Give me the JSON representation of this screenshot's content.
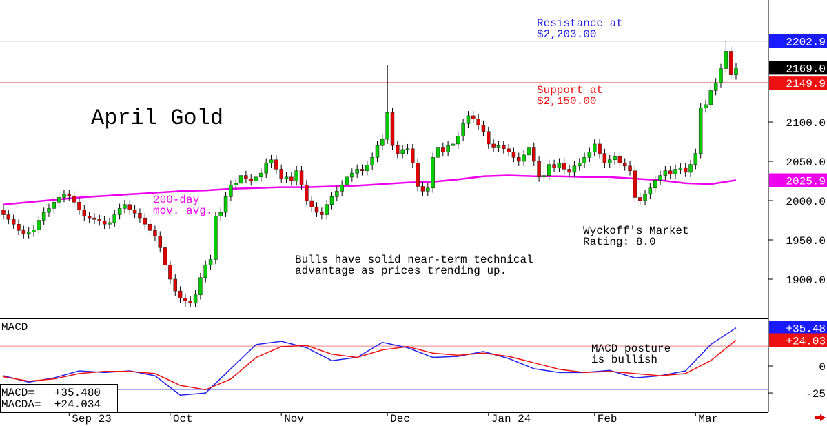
{
  "chart_data": [
    {
      "type": "candlestick",
      "title": "April Gold",
      "categories": [
        null,
        null,
        null,
        null,
        null,
        null,
        null,
        null,
        null,
        null,
        null,
        null,
        null,
        "Sep 23",
        null,
        null,
        null,
        null,
        null,
        null,
        null,
        null,
        null,
        null,
        null,
        null,
        null,
        null,
        null,
        null,
        null,
        null,
        null,
        "Oct",
        null,
        null,
        null,
        null,
        null,
        null,
        null,
        null,
        null,
        null,
        null,
        null,
        null,
        null,
        null,
        null,
        null,
        null,
        null,
        null,
        null,
        "Nov",
        null,
        null,
        null,
        null,
        null,
        null,
        null,
        null,
        null,
        null,
        null,
        null,
        null,
        null,
        null,
        null,
        null,
        null,
        null,
        null,
        "Dec",
        null,
        null,
        null,
        null,
        null,
        null,
        null,
        null,
        null,
        null,
        null,
        null,
        null,
        null,
        null,
        null,
        null,
        null,
        null,
        "Jan 24",
        null,
        null,
        null,
        null,
        null,
        null,
        null,
        null,
        null,
        null,
        null,
        null,
        null,
        null,
        null,
        null,
        null,
        null,
        null,
        null,
        "Feb",
        null,
        null,
        null,
        null,
        null,
        null,
        null,
        null,
        null,
        null,
        null,
        null,
        null,
        null,
        null,
        null,
        null,
        null,
        null,
        "Mar",
        null,
        null,
        null,
        null,
        null,
        null,
        null,
        null
      ],
      "open": [
        1988,
        1982,
        1976,
        1970,
        1962,
        1958,
        1960,
        1963,
        1975,
        1985,
        1990,
        1998,
        2004,
        2008,
        2006,
        1998,
        1988,
        1980,
        1978,
        1976,
        1974,
        1970,
        1972,
        1982,
        1990,
        1995,
        1988,
        1984,
        1978,
        1970,
        1962,
        1955,
        1940,
        1918,
        1900,
        1885,
        1876,
        1872,
        1870,
        1880,
        1902,
        1918,
        1925,
        1980,
        1985,
        2005,
        2020,
        2022,
        2032,
        2028,
        2025,
        2030,
        2035,
        2048,
        2052,
        2040,
        2028,
        2030,
        2025,
        2038,
        2020,
        2000,
        1992,
        1985,
        1982,
        1995,
        2005,
        2012,
        2020,
        2030,
        2035,
        2040,
        2038,
        2045,
        2055,
        2070,
        2078,
        2112,
        2070,
        2060,
        2065,
        2066,
        2048,
        2018,
        2012,
        2016,
        2055,
        2068,
        2062,
        2070,
        2072,
        2082,
        2098,
        2108,
        2104,
        2096,
        2088,
        2072,
        2068,
        2070,
        2066,
        2062,
        2055,
        2050,
        2058,
        2068,
        2050,
        2030,
        2032,
        2046,
        2042,
        2048,
        2040,
        2036,
        2044,
        2048,
        2055,
        2062,
        2072,
        2060,
        2048,
        2052,
        2056,
        2048,
        2044,
        2038,
        2004,
        2000,
        2008,
        2016,
        2026,
        2032,
        2038,
        2034,
        2040,
        2042,
        2036,
        2046,
        2060,
        2118,
        2122,
        2140,
        2150,
        2168,
        2190,
        2160
      ],
      "high": [
        1994,
        1988,
        1982,
        1976,
        1968,
        1966,
        1969,
        1981,
        1991,
        1996,
        2004,
        2010,
        2014,
        2014,
        2012,
        2004,
        1994,
        1986,
        1984,
        1982,
        1980,
        1978,
        1988,
        1996,
        2001,
        2001,
        1994,
        1990,
        1984,
        1976,
        1968,
        1961,
        1946,
        1924,
        1906,
        1891,
        1882,
        1878,
        1886,
        1908,
        1924,
        1931,
        1986,
        1991,
        2011,
        2026,
        2028,
        2038,
        2038,
        2034,
        2036,
        2041,
        2054,
        2058,
        2058,
        2046,
        2036,
        2036,
        2044,
        2044,
        2026,
        2006,
        1998,
        1991,
        2001,
        2011,
        2018,
        2026,
        2036,
        2041,
        2046,
        2046,
        2051,
        2061,
        2076,
        2084,
        2172,
        2118,
        2076,
        2071,
        2072,
        2072,
        2054,
        2024,
        2022,
        2061,
        2074,
        2074,
        2076,
        2078,
        2088,
        2104,
        2114,
        2114,
        2110,
        2102,
        2094,
        2078,
        2076,
        2076,
        2072,
        2068,
        2061,
        2064,
        2074,
        2074,
        2056,
        2038,
        2052,
        2052,
        2054,
        2054,
        2046,
        2050,
        2054,
        2061,
        2068,
        2078,
        2078,
        2066,
        2058,
        2062,
        2062,
        2054,
        2050,
        2044,
        2010,
        2014,
        2022,
        2032,
        2038,
        2044,
        2044,
        2046,
        2048,
        2048,
        2052,
        2066,
        2124,
        2128,
        2146,
        2156,
        2174,
        2203,
        2196,
        2175
      ],
      "low": [
        1976,
        1970,
        1964,
        1956,
        1952,
        1952,
        1954,
        1957,
        1969,
        1979,
        1984,
        1992,
        1998,
        2000,
        1992,
        1982,
        1974,
        1972,
        1970,
        1968,
        1964,
        1964,
        1966,
        1976,
        1984,
        1982,
        1978,
        1972,
        1964,
        1956,
        1949,
        1934,
        1912,
        1894,
        1879,
        1870,
        1865,
        1864,
        1864,
        1874,
        1896,
        1912,
        1919,
        1974,
        1979,
        1999,
        2014,
        2016,
        2022,
        2019,
        2019,
        2024,
        2029,
        2042,
        2034,
        2022,
        2022,
        2019,
        2019,
        2014,
        1994,
        1986,
        1979,
        1976,
        1976,
        1989,
        1999,
        2006,
        2014,
        2024,
        2029,
        2032,
        2032,
        2039,
        2049,
        2064,
        2072,
        2064,
        2054,
        2054,
        2059,
        2042,
        2012,
        2006,
        2006,
        2010,
        2049,
        2056,
        2056,
        2064,
        2066,
        2076,
        2092,
        2098,
        2090,
        2082,
        2066,
        2062,
        2062,
        2060,
        2056,
        2049,
        2044,
        2044,
        2052,
        2044,
        2024,
        2024,
        2026,
        2036,
        2036,
        2034,
        2030,
        2030,
        2038,
        2042,
        2049,
        2056,
        2054,
        2042,
        2042,
        2046,
        2042,
        2038,
        2032,
        1998,
        1994,
        1994,
        2002,
        2010,
        2020,
        2026,
        2028,
        2028,
        2034,
        2030,
        2030,
        2040,
        2054,
        2112,
        2116,
        2134,
        2144,
        2162,
        2154,
        2154
      ],
      "close": [
        1982,
        1976,
        1970,
        1962,
        1958,
        1960,
        1963,
        1975,
        1985,
        1990,
        1998,
        2004,
        2008,
        2006,
        1998,
        1988,
        1980,
        1978,
        1976,
        1974,
        1970,
        1972,
        1982,
        1990,
        1995,
        1988,
        1984,
        1978,
        1970,
        1962,
        1955,
        1940,
        1918,
        1900,
        1885,
        1876,
        1872,
        1870,
        1880,
        1902,
        1918,
        1925,
        1980,
        1985,
        2005,
        2020,
        2022,
        2032,
        2028,
        2025,
        2030,
        2035,
        2048,
        2052,
        2040,
        2028,
        2030,
        2025,
        2038,
        2020,
        2000,
        1992,
        1985,
        1982,
        1995,
        2005,
        2012,
        2020,
        2030,
        2035,
        2040,
        2038,
        2045,
        2055,
        2070,
        2078,
        2112,
        2070,
        2060,
        2065,
        2066,
        2048,
        2018,
        2012,
        2016,
        2055,
        2068,
        2062,
        2070,
        2072,
        2082,
        2098,
        2108,
        2104,
        2096,
        2088,
        2072,
        2068,
        2070,
        2066,
        2062,
        2055,
        2050,
        2058,
        2068,
        2050,
        2030,
        2032,
        2046,
        2042,
        2048,
        2040,
        2036,
        2044,
        2048,
        2055,
        2062,
        2072,
        2060,
        2048,
        2052,
        2056,
        2048,
        2044,
        2038,
        2004,
        2000,
        2008,
        2016,
        2026,
        2032,
        2038,
        2034,
        2040,
        2042,
        2036,
        2046,
        2060,
        2118,
        2122,
        2140,
        2150,
        2168,
        2190,
        2160,
        2169
      ],
      "up_color": "#00cc00",
      "down_color": "#e00000",
      "ylim": [
        1850,
        2255.3
      ],
      "yticks": [
        {
          "value": 1900,
          "label": "1900.0"
        },
        {
          "value": 1950,
          "label": "1950.0"
        },
        {
          "value": 2000,
          "label": "2000.0"
        },
        {
          "value": 2050,
          "label": "2050.0"
        },
        {
          "value": 2100,
          "label": "2100.0"
        }
      ],
      "series": [
        {
          "color": "#ee00ee",
          "x": [
            0,
            5,
            10,
            15,
            20,
            25,
            30,
            35,
            40,
            45,
            50,
            55,
            60,
            65,
            70,
            75,
            80,
            85,
            90,
            95,
            100,
            105,
            110,
            115,
            120,
            125,
            130,
            135,
            140,
            145
          ],
          "values": [
            1995,
            1998,
            2001,
            2004,
            2006,
            2008,
            2010,
            2012,
            2013,
            2015,
            2016,
            2017,
            2017,
            2018,
            2019,
            2021,
            2023,
            2024,
            2027,
            2031,
            2032,
            2031,
            2031,
            2030,
            2030,
            2028,
            2026,
            2022,
            2021,
            2026
          ]
        }
      ],
      "hlines": [
        {
          "value": 2203,
          "color": "#3333cc"
        },
        {
          "value": 2150,
          "color": "#dd3333"
        }
      ],
      "price_tags": [
        {
          "value": 2202.9,
          "color": "#1a1aff"
        },
        {
          "value": 2169,
          "label": "2169.0",
          "color": "#000000"
        },
        {
          "value": 2149.9,
          "color": "#ee1111"
        },
        {
          "value": 2025.9,
          "color": "#ee00ee"
        }
      ],
      "annotations": [
        {
          "lines": [
            "Resistance at",
            "$2,203.00"
          ],
          "color": "#2222dd"
        },
        {
          "lines": [
            "Support at",
            "$2,150.00"
          ],
          "color": "#ee1111"
        },
        {
          "lines": [
            "200-day",
            "mov. avg."
          ],
          "color": "#ee00ee"
        },
        {
          "lines": [
            "Wyckoff's Market",
            "Rating: 8.0"
          ],
          "color": "#000000"
        },
        {
          "lines": [
            "Bulls have solid near-term technical",
            "advantage as prices trending up."
          ],
          "color": "#000000"
        }
      ]
    },
    {
      "type": "line",
      "title": "MACD",
      "series": [
        {
          "color": "#2222ee",
          "x": [
            0,
            5,
            10,
            15,
            20,
            25,
            30,
            35,
            40,
            45,
            50,
            55,
            60,
            65,
            70,
            75,
            80,
            85,
            90,
            95,
            100,
            105,
            110,
            115,
            120,
            125,
            130,
            135,
            140,
            145
          ],
          "values": [
            -9,
            -15,
            -11,
            -4.5,
            -6,
            -4.5,
            -9,
            -27,
            -25,
            -2.5,
            20,
            23,
            17,
            5,
            8,
            22,
            17,
            8,
            9,
            13.5,
            7,
            -2.5,
            -6,
            -6,
            -4,
            -11,
            -9,
            -4.5,
            20,
            35.48
          ]
        },
        {
          "color": "#ee1111",
          "x": [
            0,
            5,
            10,
            15,
            20,
            25,
            30,
            35,
            40,
            45,
            50,
            55,
            60,
            65,
            70,
            75,
            80,
            85,
            90,
            95,
            100,
            105,
            110,
            115,
            120,
            125,
            130,
            135,
            140,
            145
          ],
          "values": [
            -10,
            -14,
            -12,
            -7,
            -5,
            -5,
            -7,
            -18,
            -22,
            -12,
            8,
            18,
            19,
            11,
            8,
            15,
            18,
            12,
            10,
            12,
            9,
            3,
            -3,
            -6,
            -5,
            -7,
            -9,
            -7,
            5,
            24.03
          ]
        }
      ],
      "ylim": [
        -42.9,
        44.2
      ],
      "yticks": [
        0,
        -25
      ],
      "hlines": [
        {
          "value": 18.5,
          "color": "#f08080"
        },
        {
          "value": -22,
          "color": "#9999ee"
        }
      ],
      "price_tags": [
        {
          "value": 35.48,
          "label": "+35.48",
          "color": "#1a1aff"
        },
        {
          "value": 24.03,
          "label": "+24.03",
          "color": "#ee1111"
        }
      ],
      "readout": [
        "MACD=   +35.480",
        "MACDA=  +24.034"
      ],
      "annotations": [
        {
          "lines": [
            "MACD posture",
            "is bullish"
          ],
          "color": "#000000"
        }
      ]
    }
  ]
}
